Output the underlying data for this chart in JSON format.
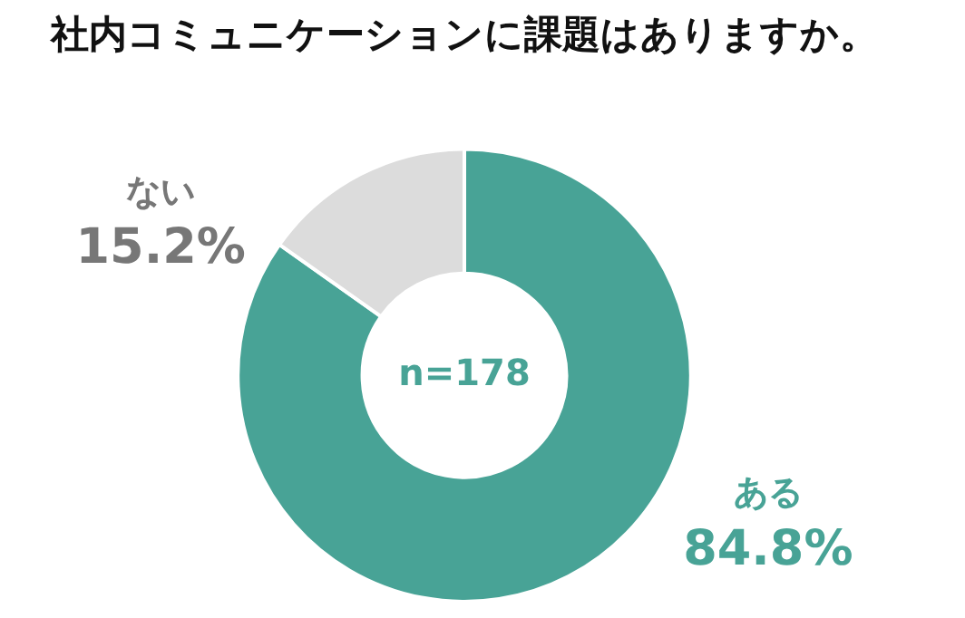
{
  "chart_data": {
    "type": "donut",
    "title": "社内コミュニケーションに課題はありますか。",
    "categories": [
      "ある",
      "ない"
    ],
    "values": [
      84.8,
      15.2
    ],
    "colors": [
      "#48a396",
      "#dcdcdc"
    ],
    "value_labels": [
      "84.8%",
      "15.2%"
    ],
    "annotations": [
      "n=178"
    ],
    "legend": false
  }
}
